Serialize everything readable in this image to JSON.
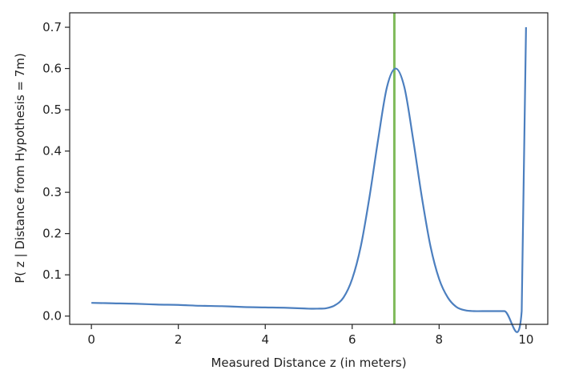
{
  "chart_data": {
    "type": "line",
    "title": "",
    "xlabel": "Measured Distance z (in meters)",
    "ylabel": "P( z | Distance from Hypothesis = 7m)",
    "xlim": [
      -0.5,
      10.5
    ],
    "ylim": [
      -0.02,
      0.735
    ],
    "xticks": [
      0,
      2,
      4,
      6,
      8,
      10
    ],
    "yticks": [
      0.0,
      0.1,
      0.2,
      0.3,
      0.4,
      0.5,
      0.6,
      0.7
    ],
    "xtick_labels": [
      "0",
      "2",
      "4",
      "6",
      "8",
      "10"
    ],
    "ytick_labels": [
      "0.0",
      "0.1",
      "0.2",
      "0.3",
      "0.4",
      "0.5",
      "0.6",
      "0.7"
    ],
    "grid": false,
    "series": [
      {
        "color": "#4c7fbf",
        "x": [
          0,
          0.5,
          1,
          1.5,
          2,
          2.5,
          3,
          3.5,
          4,
          4.5,
          5,
          5.2,
          5.4,
          5.6,
          5.8,
          6.0,
          6.2,
          6.4,
          6.6,
          6.8,
          7.0,
          7.2,
          7.4,
          7.6,
          7.8,
          8.0,
          8.2,
          8.4,
          8.6,
          8.8,
          9.0,
          9.5,
          9.9,
          10.0
        ],
        "y": [
          0.032,
          0.031,
          0.03,
          0.028,
          0.027,
          0.025,
          0.024,
          0.022,
          0.021,
          0.02,
          0.018,
          0.018,
          0.019,
          0.026,
          0.045,
          0.09,
          0.17,
          0.29,
          0.43,
          0.555,
          0.6,
          0.555,
          0.43,
          0.29,
          0.17,
          0.09,
          0.045,
          0.022,
          0.014,
          0.012,
          0.012,
          0.012,
          0.012,
          0.7
        ]
      }
    ],
    "vlines": [
      {
        "x": 6.97,
        "color": "#7fba5a"
      }
    ]
  }
}
